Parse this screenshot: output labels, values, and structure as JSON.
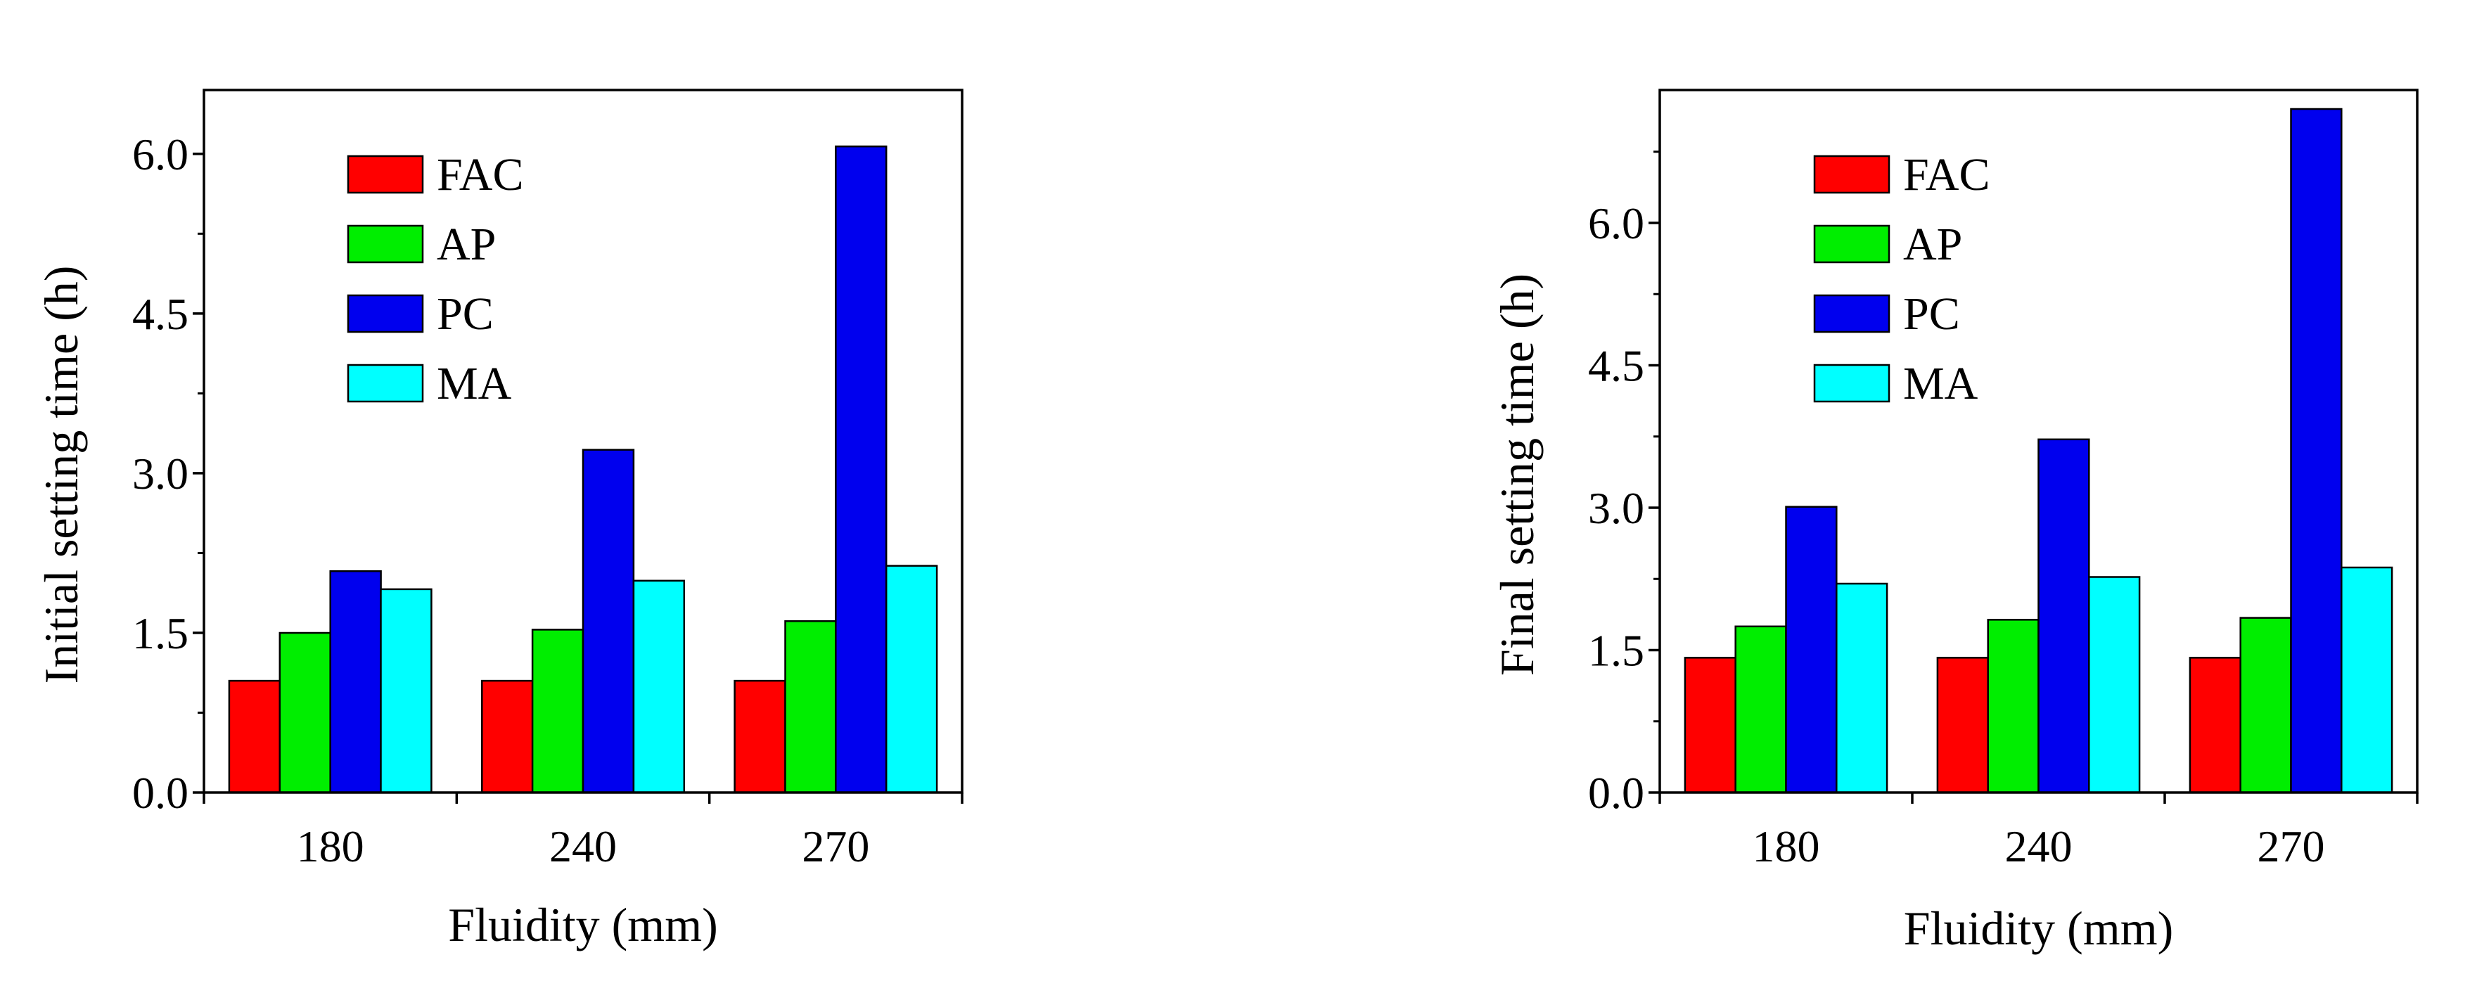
{
  "colors": {
    "FAC": "#ff0000",
    "AP": "#00ee00",
    "PC": "#0000ee",
    "MA": "#00ffff"
  },
  "chart_data": [
    {
      "type": "bar",
      "title": "",
      "xlabel": "Fluidity (mm)",
      "ylabel": "Initial setting time (h)",
      "categories": [
        "180",
        "240",
        "270"
      ],
      "ylim": [
        0,
        6.6
      ],
      "yticks": [
        "0.0",
        "1.5",
        "3.0",
        "4.5",
        "6.0"
      ],
      "yticks_values": [
        0,
        1.5,
        3.0,
        4.5,
        6.0
      ],
      "grid": false,
      "legend": "top-left",
      "series": [
        {
          "name": "FAC",
          "values": [
            1.05,
            1.05,
            1.05
          ]
        },
        {
          "name": "AP",
          "values": [
            1.5,
            1.53,
            1.61
          ]
        },
        {
          "name": "PC",
          "values": [
            2.08,
            3.22,
            6.07
          ]
        },
        {
          "name": "MA",
          "values": [
            1.91,
            1.99,
            2.13
          ]
        }
      ]
    },
    {
      "type": "bar",
      "title": "",
      "xlabel": "Fluidity (mm)",
      "ylabel": "Final setting time (h)",
      "categories": [
        "180",
        "240",
        "270"
      ],
      "ylim": [
        0,
        7.4
      ],
      "yticks": [
        "0.0",
        "1.5",
        "3.0",
        "4.5",
        "6.0"
      ],
      "yticks_values": [
        0,
        1.5,
        3.0,
        4.5,
        6.0
      ],
      "grid": false,
      "legend": "top-left",
      "series": [
        {
          "name": "FAC",
          "values": [
            1.42,
            1.42,
            1.42
          ]
        },
        {
          "name": "AP",
          "values": [
            1.75,
            1.82,
            1.84
          ]
        },
        {
          "name": "PC",
          "values": [
            3.01,
            3.72,
            7.2
          ]
        },
        {
          "name": "MA",
          "values": [
            2.2,
            2.27,
            2.37
          ]
        }
      ]
    }
  ]
}
